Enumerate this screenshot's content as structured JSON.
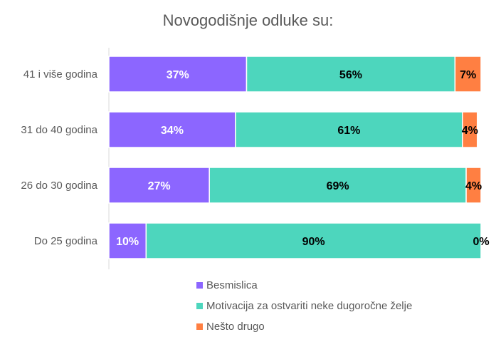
{
  "chart_data": {
    "type": "bar",
    "orientation": "horizontal",
    "stacked": "percent",
    "title": "Novogodišnje odluke su:",
    "categories": [
      "41 i više godina",
      "31 do 40 godina",
      "26 do 30 godina",
      "Do 25 godina"
    ],
    "series": [
      {
        "name": "Besmislica",
        "color": "#8c66ff",
        "label_color": "#ffffff",
        "values": [
          37,
          34,
          27,
          10
        ],
        "labels": [
          "37%",
          "34%",
          "27%",
          "10%"
        ]
      },
      {
        "name": "Motivacija za ostvariti neke dugoročne želje",
        "color": "#4dd6bd",
        "label_color": "#000000",
        "values": [
          56,
          61,
          69,
          90
        ],
        "labels": [
          "56%",
          "61%",
          "69%",
          "90%"
        ]
      },
      {
        "name": "Nešto drugo",
        "color": "#ff7f42",
        "label_color": "#000000",
        "values": [
          7,
          4,
          4,
          0
        ],
        "labels": [
          "7%",
          "4%",
          "4%",
          "0%"
        ]
      }
    ],
    "xlim": [
      0,
      100
    ],
    "grid": false,
    "legend_position": "bottom"
  }
}
